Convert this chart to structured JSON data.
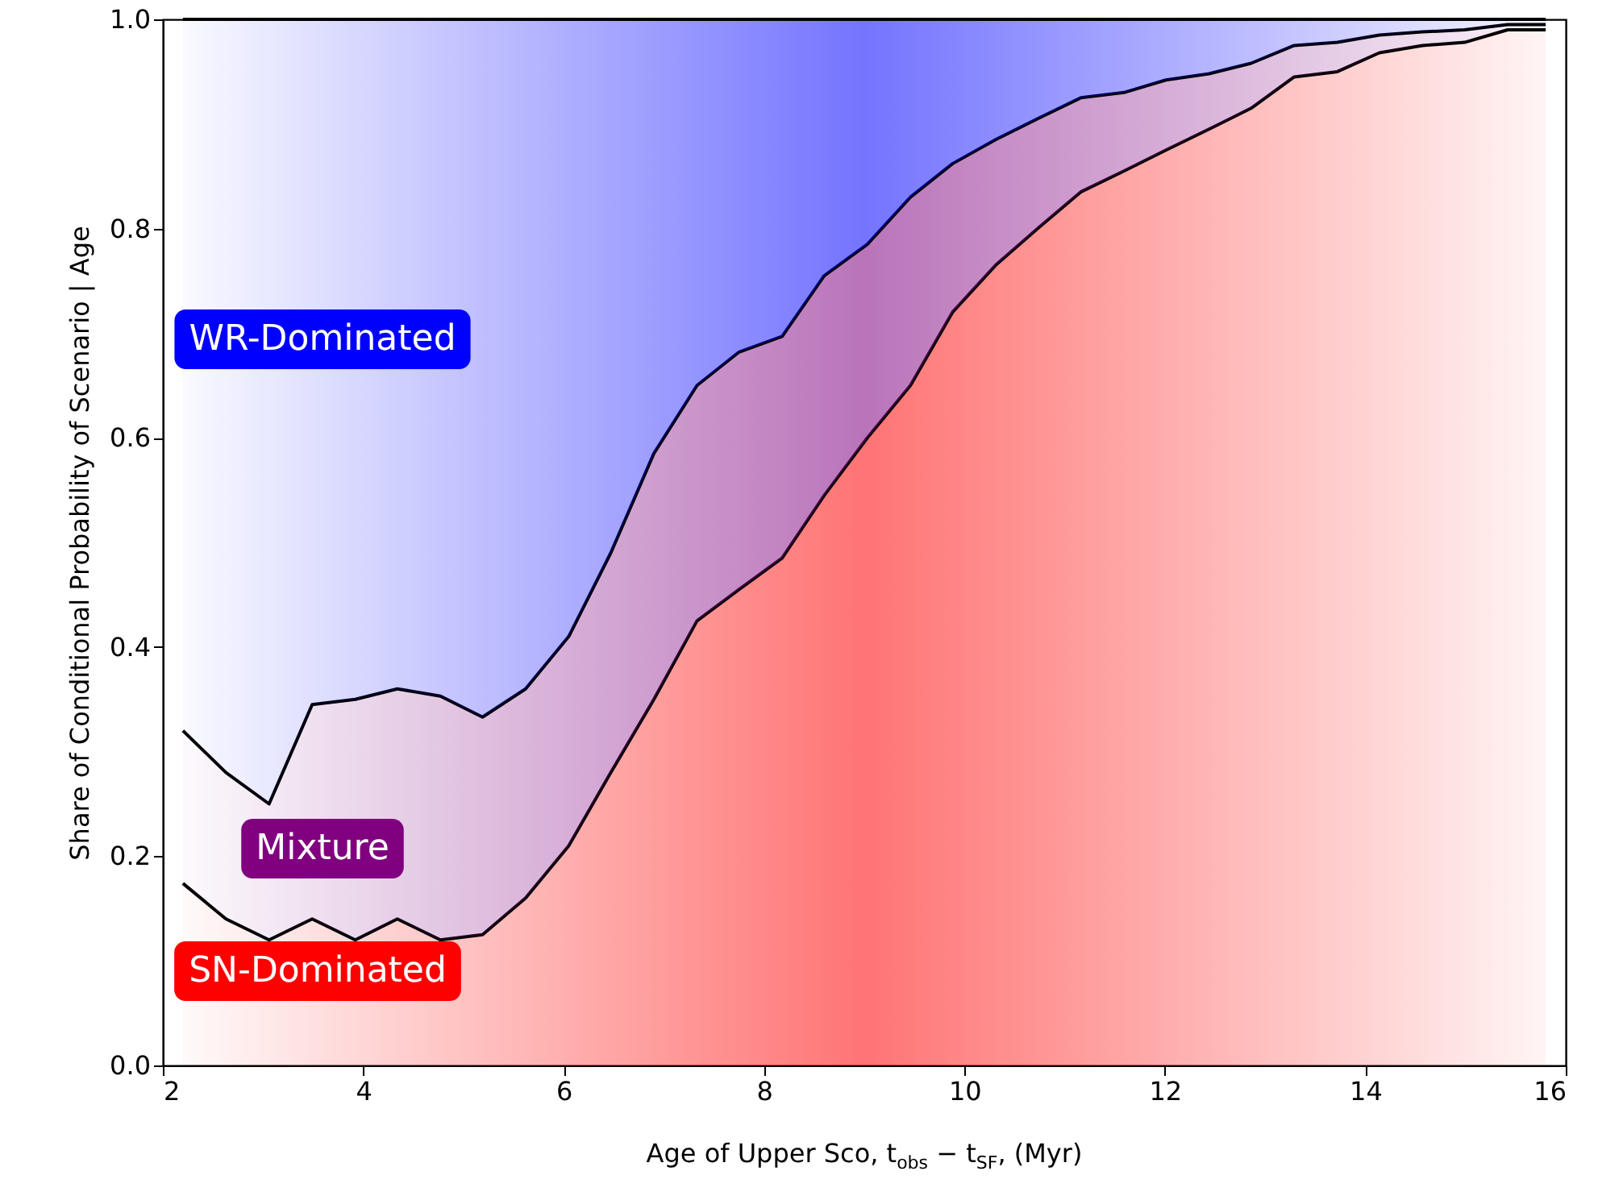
{
  "chart_data": {
    "type": "area",
    "stacked": true,
    "xlabel": "Age of Upper Sco, t$_{obs}$ − t$_{SF}$, (Myr)",
    "ylabel": "Share of Conditional Probability of Scenario | Age",
    "x": [
      2.2,
      2.63,
      3.06,
      3.49,
      3.92,
      4.34,
      4.77,
      5.19,
      5.62,
      6.05,
      6.47,
      6.9,
      7.33,
      7.75,
      8.18,
      8.6,
      9.03,
      9.46,
      9.88,
      10.31,
      10.73,
      11.16,
      11.59,
      12.01,
      12.44,
      12.86,
      13.29,
      13.72,
      14.14,
      14.57,
      14.99,
      15.42,
      15.8
    ],
    "series": [
      {
        "name": "SN-Dominated",
        "color": "#ff0000",
        "values": [
          0.174,
          0.14,
          0.12,
          0.14,
          0.12,
          0.14,
          0.12,
          0.125,
          0.16,
          0.21,
          0.28,
          0.35,
          0.425,
          0.455,
          0.485,
          0.545,
          0.6,
          0.65,
          0.72,
          0.765,
          0.8,
          0.835,
          0.855,
          0.875,
          0.895,
          0.915,
          0.945,
          0.95,
          0.968,
          0.975,
          0.978,
          0.99,
          0.99
        ]
      },
      {
        "name": "Mixture",
        "color": "#800080",
        "values": [
          0.146,
          0.14,
          0.13,
          0.205,
          0.23,
          0.22,
          0.233,
          0.208,
          0.2,
          0.2,
          0.21,
          0.235,
          0.225,
          0.227,
          0.212,
          0.21,
          0.185,
          0.18,
          0.142,
          0.12,
          0.105,
          0.09,
          0.075,
          0.067,
          0.053,
          0.043,
          0.03,
          0.028,
          0.017,
          0.013,
          0.012,
          0.005,
          0.005
        ]
      },
      {
        "name": "WR-Dominated",
        "color": "#0000ff",
        "values": [
          0.68,
          0.72,
          0.75,
          0.655,
          0.65,
          0.64,
          0.647,
          0.667,
          0.64,
          0.59,
          0.51,
          0.415,
          0.35,
          0.318,
          0.303,
          0.245,
          0.215,
          0.17,
          0.138,
          0.115,
          0.095,
          0.075,
          0.07,
          0.058,
          0.052,
          0.042,
          0.025,
          0.022,
          0.015,
          0.012,
          0.01,
          0.005,
          0.005
        ]
      }
    ],
    "xlim": [
      2,
      16
    ],
    "xticks": [
      2,
      4,
      6,
      8,
      10,
      12,
      14,
      16
    ],
    "ylim": [
      0,
      1
    ],
    "yticks": [
      {
        "value": 0,
        "label": "0.0"
      },
      {
        "value": 0.2,
        "label": "0.2"
      },
      {
        "value": 0.4,
        "label": "0.4"
      },
      {
        "value": 0.6,
        "label": "0.6"
      },
      {
        "value": 0.8,
        "label": "0.8"
      },
      {
        "value": 1,
        "label": "1.0"
      }
    ],
    "grid": false
  }
}
